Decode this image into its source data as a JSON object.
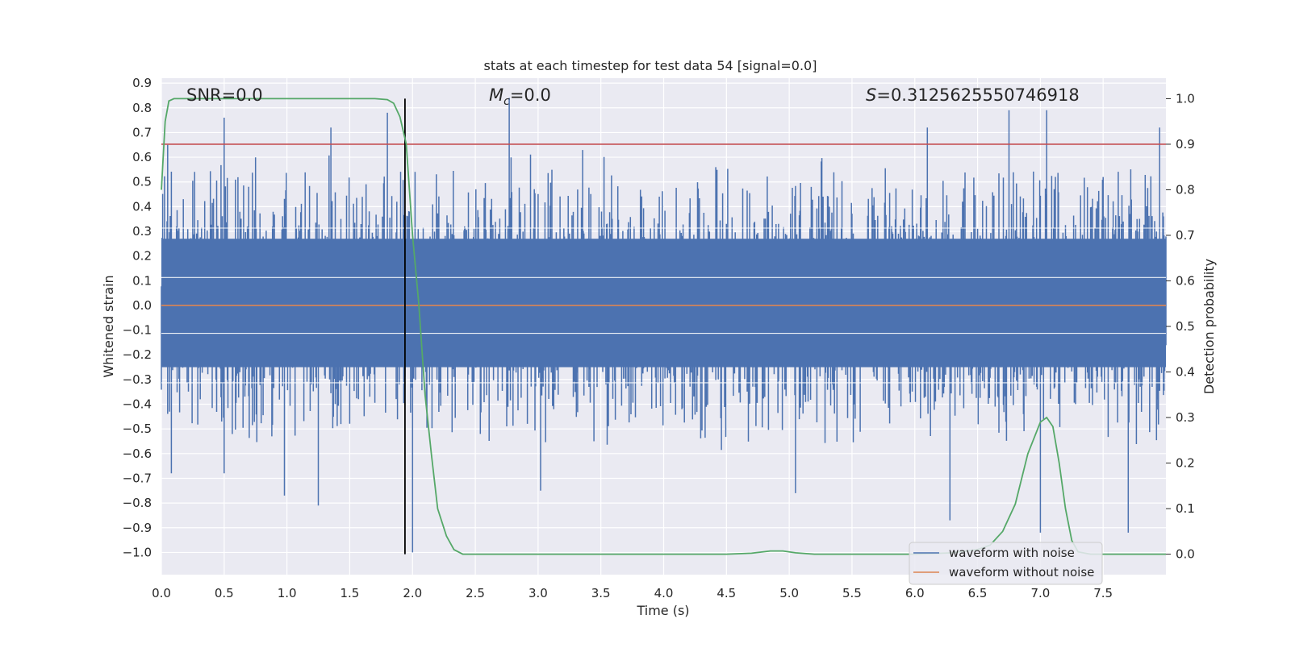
{
  "chart_data": {
    "type": "line",
    "title": "stats at each timestep for test data 54 [signal=0.0]",
    "xlabel": "Time (s)",
    "ylabel": "Whitened strain",
    "y2label": "Detection probability",
    "xlim": [
      0.0,
      8.0
    ],
    "ylim": [
      -1.09,
      0.92
    ],
    "y2lim": [
      -0.045,
      1.045
    ],
    "xticks": [
      "0.0",
      "0.5",
      "1.0",
      "1.5",
      "2.0",
      "2.5",
      "3.0",
      "3.5",
      "4.0",
      "4.5",
      "5.0",
      "5.5",
      "6.0",
      "6.5",
      "7.0",
      "7.5"
    ],
    "yticks": [
      "0.9",
      "0.8",
      "0.7",
      "0.6",
      "0.5",
      "0.4",
      "0.3",
      "0.2",
      "0.1",
      "0.0",
      "−0.1",
      "−0.2",
      "−0.3",
      "−0.4",
      "−0.5",
      "−0.6",
      "−0.7",
      "−0.8",
      "−0.9",
      "−1.0"
    ],
    "y2ticks": [
      "1.0",
      "0.9",
      "0.8",
      "0.7",
      "0.6",
      "0.5",
      "0.4",
      "0.3",
      "0.2",
      "0.1",
      "0.0"
    ],
    "annotations": {
      "snr": "SNR=0.0",
      "mc_symbol": "M",
      "mc_sub": "c",
      "mc_value": "=0.0",
      "s_symbol": "S",
      "s_value": "=0.3125625550746918"
    },
    "threshold_line": {
      "y2": 0.9,
      "color": "#c44e52"
    },
    "vertical_marker": {
      "x": 1.94,
      "color": "#000000"
    },
    "series": [
      {
        "name": "waveform with noise",
        "color": "#4c72b0",
        "note": "dense noisy strain spanning the full time range",
        "typical_range": [
          -0.45,
          0.5
        ],
        "peaks": [
          {
            "x": 0.05,
            "y": 0.65
          },
          {
            "x": 0.5,
            "y": 0.76
          },
          {
            "x": 1.35,
            "y": 0.72
          },
          {
            "x": 1.8,
            "y": 0.78
          },
          {
            "x": 2.77,
            "y": 0.84
          },
          {
            "x": 6.1,
            "y": 0.72
          },
          {
            "x": 6.75,
            "y": 0.79
          },
          {
            "x": 7.05,
            "y": 0.79
          },
          {
            "x": 7.95,
            "y": 0.72
          }
        ],
        "troughs": [
          {
            "x": 0.08,
            "y": -0.68
          },
          {
            "x": 0.5,
            "y": -0.68
          },
          {
            "x": 0.98,
            "y": -0.77
          },
          {
            "x": 1.25,
            "y": -0.81
          },
          {
            "x": 2.0,
            "y": -1.0
          },
          {
            "x": 3.02,
            "y": -0.75
          },
          {
            "x": 5.05,
            "y": -0.76
          },
          {
            "x": 6.28,
            "y": -0.87
          },
          {
            "x": 7.0,
            "y": -0.92
          },
          {
            "x": 7.7,
            "y": -0.92
          }
        ]
      },
      {
        "name": "waveform without noise",
        "color": "#dd8452",
        "x": [
          0.0,
          8.0
        ],
        "y": [
          0.0,
          0.0
        ]
      },
      {
        "name": "",
        "axis": "right",
        "color": "#55a868",
        "x": [
          0.0,
          0.03,
          0.06,
          0.1,
          0.15,
          0.3,
          0.6,
          1.0,
          1.5,
          1.7,
          1.8,
          1.85,
          1.9,
          1.95,
          2.0,
          2.05,
          2.1,
          2.15,
          2.2,
          2.27,
          2.33,
          2.4,
          2.5,
          3.0,
          3.5,
          4.0,
          4.5,
          4.7,
          4.85,
          4.95,
          5.05,
          5.2,
          5.5,
          6.0,
          6.3,
          6.5,
          6.6,
          6.7,
          6.8,
          6.9,
          7.0,
          7.05,
          7.1,
          7.15,
          7.2,
          7.25,
          7.3,
          7.4,
          7.6,
          8.0
        ],
        "y": [
          0.8,
          0.95,
          0.995,
          1.0,
          1.0,
          1.0,
          1.0,
          1.0,
          1.0,
          1.0,
          0.998,
          0.99,
          0.96,
          0.9,
          0.7,
          0.55,
          0.35,
          0.22,
          0.1,
          0.04,
          0.01,
          0.0,
          0.0,
          0.0,
          0.0,
          0.0,
          0.0,
          0.002,
          0.007,
          0.007,
          0.003,
          0.0,
          0.0,
          0.0,
          0.003,
          0.01,
          0.02,
          0.05,
          0.11,
          0.22,
          0.29,
          0.3,
          0.28,
          0.2,
          0.1,
          0.03,
          0.005,
          0.0,
          0.0,
          0.0
        ]
      }
    ],
    "legend": {
      "location": "lower right",
      "entries": [
        {
          "label": "waveform with noise",
          "color": "#4c72b0"
        },
        {
          "label": "waveform without noise",
          "color": "#dd8452"
        }
      ]
    },
    "style": {
      "plot_background": "#eaeaf2",
      "grid": true,
      "grid_color": "#ffffff"
    }
  }
}
